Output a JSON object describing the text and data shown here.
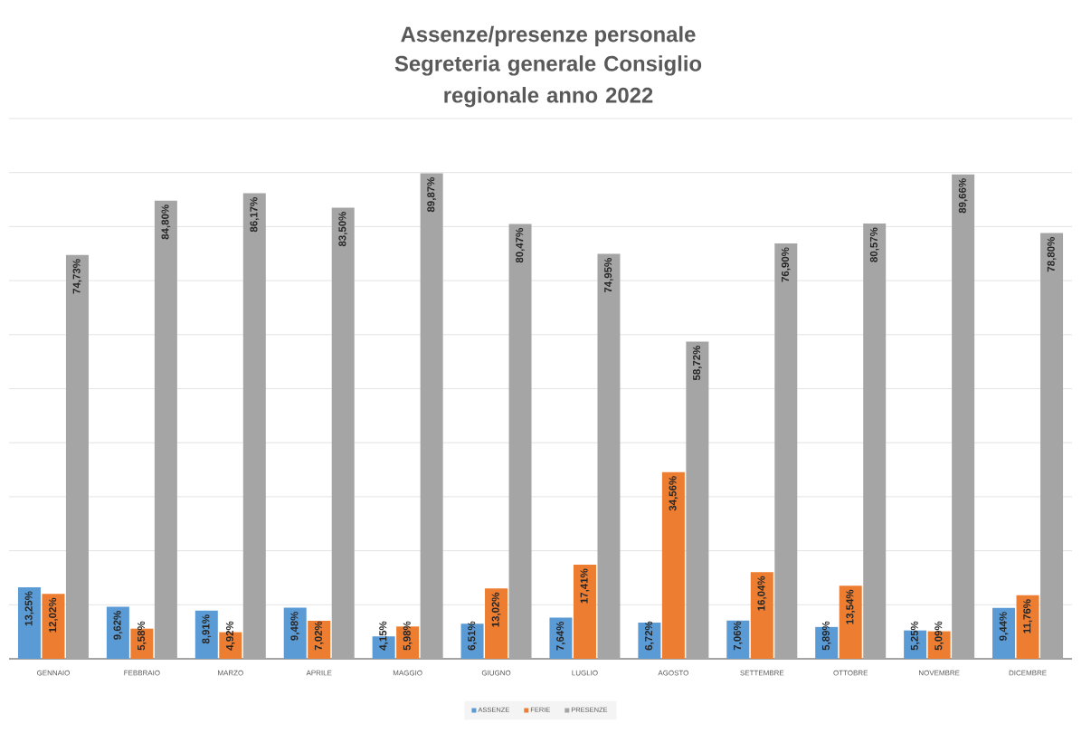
{
  "chart_data": {
    "type": "bar",
    "title": "Assenze/presenze personale",
    "subtitle": "Segreteria generale Consiglio regionale anno 2022",
    "categories": [
      "GENNAIO",
      "FEBBRAIO",
      "MARZO",
      "APRILE",
      "MAGGIO",
      "GIUGNO",
      "LUGLIO",
      "AGOSTO",
      "SETTEMBRE",
      "OTTOBRE",
      "NOVEMBRE",
      "DICEMBRE"
    ],
    "series": [
      {
        "name": "ASSENZE",
        "color": "#5b9bd5",
        "values": [
          13.25,
          9.62,
          8.91,
          9.48,
          4.15,
          6.51,
          7.64,
          6.72,
          7.06,
          5.89,
          5.25,
          9.44
        ],
        "value_labels": [
          "13,25%",
          "9,62%",
          "8,91%",
          "9,48%",
          "4,15%",
          "6,51%",
          "7,64%",
          "6,72%",
          "7,06%",
          "5,89%",
          "5,25%",
          "9,44%"
        ]
      },
      {
        "name": "FERIE",
        "color": "#ed7d31",
        "values": [
          12.02,
          5.58,
          4.92,
          7.02,
          5.98,
          13.02,
          17.41,
          34.56,
          16.04,
          13.54,
          5.09,
          11.76
        ],
        "value_labels": [
          "12,02%",
          "5,58%",
          "4,92%",
          "7,02%",
          "5,98%",
          "13,02%",
          "17,41%",
          "34,56%",
          "16,04%",
          "13,54%",
          "5,09%",
          "11,76%"
        ]
      },
      {
        "name": "PRESENZE",
        "color": "#a5a5a5",
        "values": [
          74.73,
          84.8,
          86.17,
          83.5,
          89.87,
          80.47,
          74.95,
          58.72,
          76.9,
          80.57,
          89.66,
          78.8
        ],
        "value_labels": [
          "74,73%",
          "84,80%",
          "86,17%",
          "83,50%",
          "89,87%",
          "80,47%",
          "74,95%",
          "58,72%",
          "76,90%",
          "80,57%",
          "89,66%",
          "78,80%"
        ]
      }
    ],
    "ylim": [
      0,
      100
    ],
    "yticks": [
      0,
      10,
      20,
      30,
      40,
      50,
      60,
      70,
      80,
      90,
      100
    ],
    "grid": "y",
    "legend": "bottom",
    "tick_labels": "x"
  }
}
